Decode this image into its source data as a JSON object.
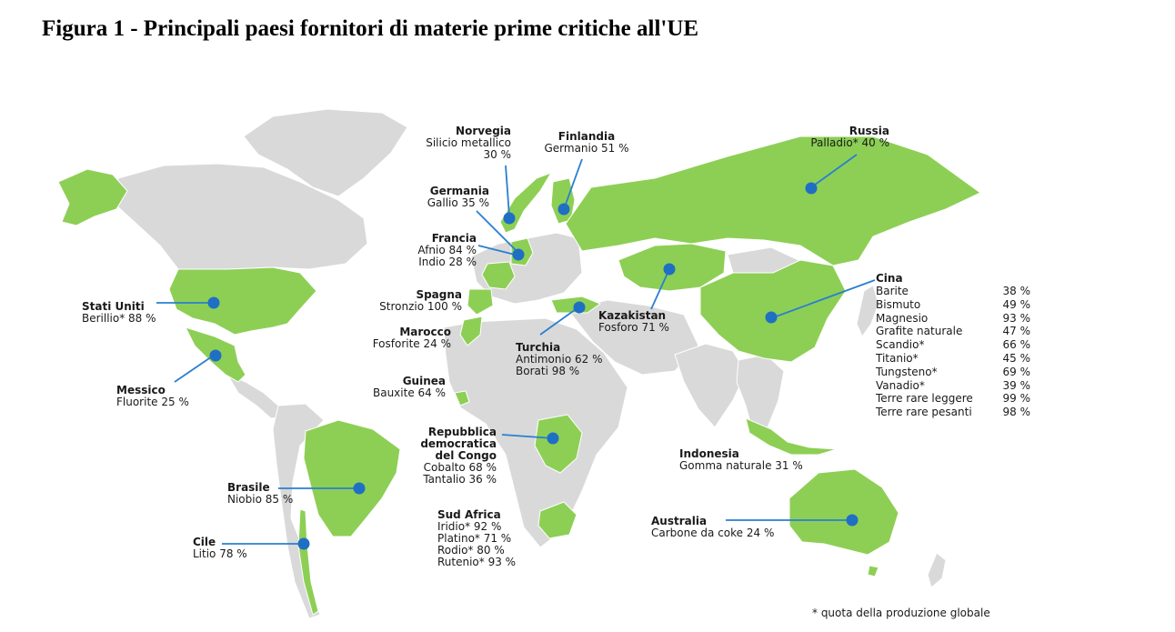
{
  "title": "Figura 1 - Principali paesi fornitori di materie prime critiche all'UE",
  "colors": {
    "supplier": "#8dcf55",
    "other": "#d9d9d9",
    "marker": "#1f6fc4",
    "leader": "#2a7fcf"
  },
  "countries": {
    "norvegia": {
      "name": "Norvegia",
      "lines": [
        "Silicio metallico",
        "30 %"
      ]
    },
    "finlandia": {
      "name": "Finlandia",
      "lines": [
        "Germanio 51 %"
      ]
    },
    "russia": {
      "name": "Russia",
      "lines": [
        "Palladio* 40 %"
      ]
    },
    "germania": {
      "name": "Germania",
      "lines": [
        "Gallio 35 %"
      ]
    },
    "francia": {
      "name": "Francia",
      "lines": [
        "Afnio 84 %",
        "Indio 28 %"
      ]
    },
    "spagna": {
      "name": "Spagna",
      "lines": [
        "Stronzio 100 %"
      ]
    },
    "marocco": {
      "name": "Marocco",
      "lines": [
        "Fosforite 24 %"
      ]
    },
    "guinea": {
      "name": "Guinea",
      "lines": [
        "Bauxite 64 %"
      ]
    },
    "turchia": {
      "name": "Turchia",
      "lines": [
        "Antimonio 62 %",
        "Borati 98 %"
      ]
    },
    "kazakistan": {
      "name": "Kazakistan",
      "lines": [
        "Fosforo 71 %"
      ]
    },
    "stati_uniti": {
      "name": "Stati Uniti",
      "lines": [
        "Berillio* 88 %"
      ]
    },
    "messico": {
      "name": "Messico",
      "lines": [
        "Fluorite 25 %"
      ]
    },
    "brasile": {
      "name": "Brasile",
      "lines": [
        "Niobio 85 %"
      ]
    },
    "cile": {
      "name": "Cile",
      "lines": [
        "Litio 78 %"
      ]
    },
    "congo": {
      "name_lines": [
        "Repubblica",
        "democratica",
        "del Congo"
      ],
      "lines": [
        "Cobalto 68 %",
        "Tantalio 36 %"
      ]
    },
    "sud_africa": {
      "name": "Sud Africa",
      "lines": [
        "Iridio* 92 %",
        "Platino* 71 %",
        "Rodio* 80 %",
        "Rutenio* 93 %"
      ]
    },
    "indonesia": {
      "name": "Indonesia",
      "lines": [
        "Gomma naturale 31 %"
      ]
    },
    "australia": {
      "name": "Australia",
      "lines": [
        "Carbone da coke 24 %"
      ]
    },
    "cina": {
      "name": "Cina",
      "items": [
        {
          "material": "Barite",
          "share": "38 %"
        },
        {
          "material": "Bismuto",
          "share": "49 %"
        },
        {
          "material": "Magnesio",
          "share": "93 %"
        },
        {
          "material": "Grafite naturale",
          "share": "47 %"
        },
        {
          "material": "Scandio*",
          "share": "66 %"
        },
        {
          "material": "Titanio*",
          "share": "45 %"
        },
        {
          "material": "Tungsteno*",
          "share": "69 %"
        },
        {
          "material": "Vanadio*",
          "share": "39 %"
        },
        {
          "material": "Terre rare leggere",
          "share": "99 %"
        },
        {
          "material": "Terre rare pesanti",
          "share": "98 %"
        }
      ]
    }
  },
  "footnote": "* quota della produzione globale"
}
